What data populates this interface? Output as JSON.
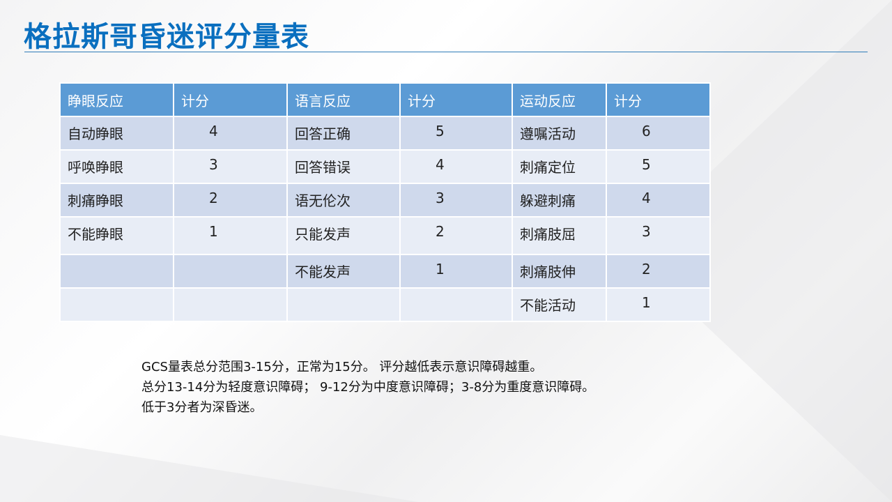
{
  "title": "格拉斯哥昏迷评分量表",
  "table": {
    "headers": [
      "睁眼反应",
      "计分",
      "语言反应",
      "计分",
      "运动反应",
      "计分"
    ],
    "rows": [
      [
        "自动睁眼",
        "4",
        "回答正确",
        "5",
        "遵嘱活动",
        "6"
      ],
      [
        "呼唤睁眼",
        "3",
        "回答错误",
        "4",
        "刺痛定位",
        "5"
      ],
      [
        "刺痛睁眼",
        "2",
        "语无伦次",
        "3",
        "躲避刺痛",
        "4"
      ],
      [
        "不能睁眼",
        "1",
        "只能发声",
        "2",
        "刺痛肢屈",
        "3"
      ],
      [
        "",
        "",
        "不能发声",
        "1",
        "刺痛肢伸",
        "2"
      ],
      [
        "",
        "",
        "",
        "",
        "不能活动",
        "1"
      ]
    ]
  },
  "notes": [
    "GCS量表总分范围3-15分，正常为15分。 评分越低表示意识障碍越重。",
    "总分13-14分为轻度意识障碍； 9-12分为中度意识障碍；3-8分为重度意识障碍。",
    "低于3分者为深昏迷。"
  ],
  "colors": {
    "title": "#0a6fbf",
    "header": "#5b9bd5",
    "row_odd": "#cfd9ec",
    "row_even": "#e8edf6"
  }
}
